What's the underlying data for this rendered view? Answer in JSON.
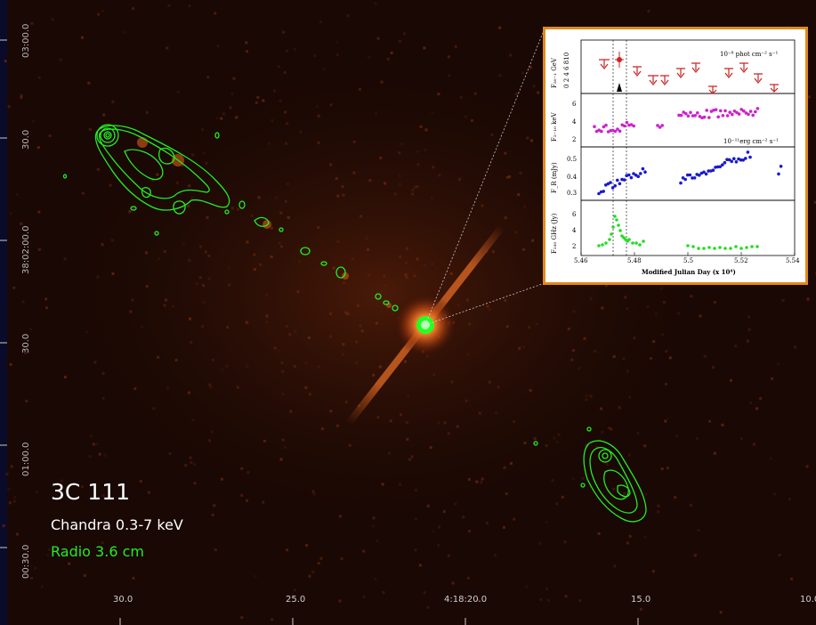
{
  "image": {
    "subject": "3C 111",
    "label_chandra": "Chandra 0.3-7 keV",
    "label_radio": "Radio 3.6 cm",
    "colors": {
      "xray": "#ff7a2a",
      "radio": "#22ee22",
      "background": "#000000",
      "inset_border": "#e08a1a"
    }
  },
  "axes": {
    "y_ticks": [
      "03:00.0",
      "30.0",
      "38:02:00.0",
      "30.0",
      "01:00.0",
      "00:30.0"
    ],
    "x_ticks": [
      "30.0",
      "25.0",
      "4:18:20.0",
      "15.0",
      "10.0"
    ]
  },
  "inset": {
    "xlabel": "Modified Julian Day (x 10⁴)",
    "x_ticks": [
      "5.46",
      "5.48",
      "5.5",
      "5.52",
      "5.54"
    ],
    "panels": [
      {
        "ylabel": "F₂₀₋₁ GeV",
        "ticks": [
          "10",
          "8",
          "6",
          "4",
          "2",
          "0"
        ],
        "units": "10⁻⁸ phot cm⁻² s⁻¹",
        "color": "#cc2222"
      },
      {
        "ylabel": "F₂₋₁₀ keV",
        "ticks": [
          "6",
          "4",
          "2"
        ],
        "units": "10⁻¹¹erg cm⁻² s⁻¹",
        "color": "#cc22cc"
      },
      {
        "ylabel": "F_R (mJy)",
        "ticks": [
          "0.5",
          "0.4",
          "0.3"
        ],
        "units": "",
        "color": "#1a1acc"
      },
      {
        "ylabel": "F₂₃₀ GHz (Jy)",
        "ticks": [
          "6",
          "4",
          "2"
        ],
        "units": "",
        "color": "#22dd22"
      }
    ]
  }
}
